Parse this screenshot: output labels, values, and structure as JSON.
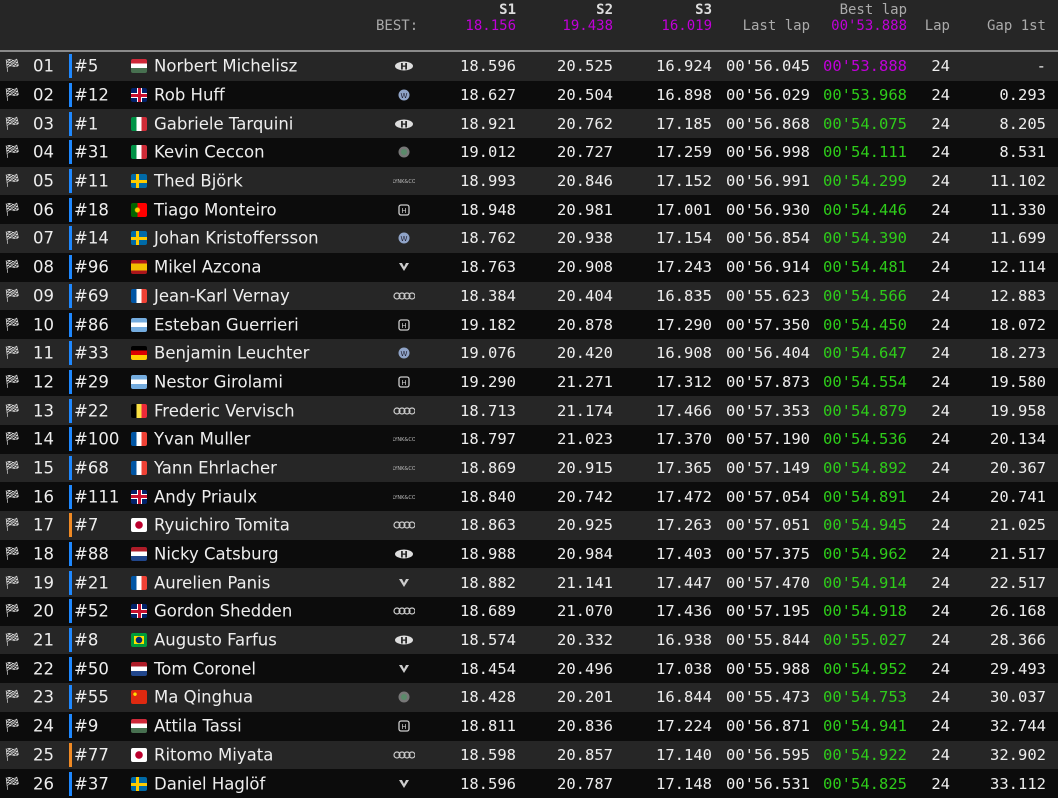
{
  "header": {
    "best_label": "BEST:",
    "s1": "S1",
    "s2": "S2",
    "s3": "S3",
    "best_s1": "18.156",
    "best_s2": "19.438",
    "best_s3": "16.019",
    "last_lap": "Last lap",
    "best_lap": "Best lap",
    "best_lap_value": "00'53.888",
    "lap": "Lap",
    "gap": "Gap 1st"
  },
  "colors": {
    "purple": "#c000d8",
    "green": "#2ecc1a",
    "bar_blue": "#1e88ff",
    "bar_orange": "#f08a24"
  },
  "rows": [
    {
      "pos": "01",
      "num": "#5",
      "country": "HU",
      "name": "Norbert Michelisz",
      "brand": "hyundai",
      "s1": "18.596",
      "s2": "20.525",
      "s3": "16.924",
      "last": "00'56.045",
      "best": "00'53.888",
      "best_overall": true,
      "lap": "24",
      "gap": "-",
      "bar": "blue"
    },
    {
      "pos": "02",
      "num": "#12",
      "country": "GB",
      "name": "Rob Huff",
      "brand": "vw",
      "s1": "18.627",
      "s2": "20.504",
      "s3": "16.898",
      "last": "00'56.029",
      "best": "00'53.968",
      "lap": "24",
      "gap": "0.293",
      "bar": "blue"
    },
    {
      "pos": "03",
      "num": "#1",
      "country": "IT",
      "name": "Gabriele Tarquini",
      "brand": "hyundai",
      "s1": "18.921",
      "s2": "20.762",
      "s3": "17.185",
      "last": "00'56.868",
      "best": "00'54.075",
      "lap": "24",
      "gap": "8.205",
      "bar": "blue"
    },
    {
      "pos": "04",
      "num": "#31",
      "country": "IT",
      "name": "Kevin Ceccon",
      "brand": "alfa",
      "s1": "19.012",
      "s2": "20.727",
      "s3": "17.259",
      "last": "00'56.998",
      "best": "00'54.111",
      "lap": "24",
      "gap": "8.531",
      "bar": "blue"
    },
    {
      "pos": "05",
      "num": "#11",
      "country": "SE",
      "name": "Thed Björk",
      "brand": "lynkco",
      "s1": "18.993",
      "s2": "20.846",
      "s3": "17.152",
      "last": "00'56.991",
      "best": "00'54.299",
      "lap": "24",
      "gap": "11.102",
      "bar": "blue"
    },
    {
      "pos": "06",
      "num": "#18",
      "country": "PT",
      "name": "Tiago Monteiro",
      "brand": "honda",
      "s1": "18.948",
      "s2": "20.981",
      "s3": "17.001",
      "last": "00'56.930",
      "best": "00'54.446",
      "lap": "24",
      "gap": "11.330",
      "bar": "blue"
    },
    {
      "pos": "07",
      "num": "#14",
      "country": "SE",
      "name": "Johan Kristoffersson",
      "brand": "vw",
      "s1": "18.762",
      "s2": "20.938",
      "s3": "17.154",
      "last": "00'56.854",
      "best": "00'54.390",
      "lap": "24",
      "gap": "11.699",
      "bar": "blue"
    },
    {
      "pos": "08",
      "num": "#96",
      "country": "ES",
      "name": "Mikel Azcona",
      "brand": "cupra",
      "s1": "18.763",
      "s2": "20.908",
      "s3": "17.243",
      "last": "00'56.914",
      "best": "00'54.481",
      "lap": "24",
      "gap": "12.114",
      "bar": "blue"
    },
    {
      "pos": "09",
      "num": "#69",
      "country": "FR",
      "name": "Jean-Karl Vernay",
      "brand": "audi",
      "s1": "18.384",
      "s2": "20.404",
      "s3": "16.835",
      "last": "00'55.623",
      "best": "00'54.566",
      "lap": "24",
      "gap": "12.883",
      "bar": "blue"
    },
    {
      "pos": "10",
      "num": "#86",
      "country": "AR",
      "name": "Esteban Guerrieri",
      "brand": "honda",
      "s1": "19.182",
      "s2": "20.878",
      "s3": "17.290",
      "last": "00'57.350",
      "best": "00'54.450",
      "lap": "24",
      "gap": "18.072",
      "bar": "blue"
    },
    {
      "pos": "11",
      "num": "#33",
      "country": "DE",
      "name": "Benjamin Leuchter",
      "brand": "vw",
      "s1": "19.076",
      "s2": "20.420",
      "s3": "16.908",
      "last": "00'56.404",
      "best": "00'54.647",
      "lap": "24",
      "gap": "18.273",
      "bar": "blue"
    },
    {
      "pos": "12",
      "num": "#29",
      "country": "AR",
      "name": "Nestor Girolami",
      "brand": "honda",
      "s1": "19.290",
      "s2": "21.271",
      "s3": "17.312",
      "last": "00'57.873",
      "best": "00'54.554",
      "lap": "24",
      "gap": "19.580",
      "bar": "blue"
    },
    {
      "pos": "13",
      "num": "#22",
      "country": "BE",
      "name": "Frederic Vervisch",
      "brand": "audi",
      "s1": "18.713",
      "s2": "21.174",
      "s3": "17.466",
      "last": "00'57.353",
      "best": "00'54.879",
      "lap": "24",
      "gap": "19.958",
      "bar": "blue"
    },
    {
      "pos": "14",
      "num": "#100",
      "country": "FR",
      "name": "Yvan Muller",
      "brand": "lynkco",
      "s1": "18.797",
      "s2": "21.023",
      "s3": "17.370",
      "last": "00'57.190",
      "best": "00'54.536",
      "lap": "24",
      "gap": "20.134",
      "bar": "blue"
    },
    {
      "pos": "15",
      "num": "#68",
      "country": "FR",
      "name": "Yann Ehrlacher",
      "brand": "lynkco",
      "s1": "18.869",
      "s2": "20.915",
      "s3": "17.365",
      "last": "00'57.149",
      "best": "00'54.892",
      "lap": "24",
      "gap": "20.367",
      "bar": "blue"
    },
    {
      "pos": "16",
      "num": "#111",
      "country": "GB",
      "name": "Andy Priaulx",
      "brand": "lynkco",
      "s1": "18.840",
      "s2": "20.742",
      "s3": "17.472",
      "last": "00'57.054",
      "best": "00'54.891",
      "lap": "24",
      "gap": "20.741",
      "bar": "blue"
    },
    {
      "pos": "17",
      "num": "#7",
      "country": "JP",
      "name": "Ryuichiro Tomita",
      "brand": "audi",
      "s1": "18.863",
      "s2": "20.925",
      "s3": "17.263",
      "last": "00'57.051",
      "best": "00'54.945",
      "lap": "24",
      "gap": "21.025",
      "bar": "orange"
    },
    {
      "pos": "18",
      "num": "#88",
      "country": "NL",
      "name": "Nicky Catsburg",
      "brand": "hyundai",
      "s1": "18.988",
      "s2": "20.984",
      "s3": "17.403",
      "last": "00'57.375",
      "best": "00'54.962",
      "lap": "24",
      "gap": "21.517",
      "bar": "blue"
    },
    {
      "pos": "19",
      "num": "#21",
      "country": "FR",
      "name": "Aurelien Panis",
      "brand": "cupra",
      "s1": "18.882",
      "s2": "21.141",
      "s3": "17.447",
      "last": "00'57.470",
      "best": "00'54.914",
      "lap": "24",
      "gap": "22.517",
      "bar": "blue"
    },
    {
      "pos": "20",
      "num": "#52",
      "country": "GB",
      "name": "Gordon Shedden",
      "brand": "audi",
      "s1": "18.689",
      "s2": "21.070",
      "s3": "17.436",
      "last": "00'57.195",
      "best": "00'54.918",
      "lap": "24",
      "gap": "26.168",
      "bar": "blue"
    },
    {
      "pos": "21",
      "num": "#8",
      "country": "BR",
      "name": "Augusto Farfus",
      "brand": "hyundai",
      "s1": "18.574",
      "s2": "20.332",
      "s3": "16.938",
      "last": "00'55.844",
      "best": "00'55.027",
      "lap": "24",
      "gap": "28.366",
      "bar": "blue"
    },
    {
      "pos": "22",
      "num": "#50",
      "country": "NL",
      "name": "Tom Coronel",
      "brand": "cupra",
      "s1": "18.454",
      "s2": "20.496",
      "s3": "17.038",
      "last": "00'55.988",
      "best": "00'54.952",
      "lap": "24",
      "gap": "29.493",
      "bar": "blue"
    },
    {
      "pos": "23",
      "num": "#55",
      "country": "CN",
      "name": "Ma Qinghua",
      "brand": "alfa",
      "s1": "18.428",
      "s2": "20.201",
      "s3": "16.844",
      "last": "00'55.473",
      "best": "00'54.753",
      "lap": "24",
      "gap": "30.037",
      "bar": "blue"
    },
    {
      "pos": "24",
      "num": "#9",
      "country": "HU",
      "name": "Attila Tassi",
      "brand": "honda",
      "s1": "18.811",
      "s2": "20.836",
      "s3": "17.224",
      "last": "00'56.871",
      "best": "00'54.941",
      "lap": "24",
      "gap": "32.744",
      "bar": "blue"
    },
    {
      "pos": "25",
      "num": "#77",
      "country": "JP",
      "name": "Ritomo Miyata",
      "brand": "audi",
      "s1": "18.598",
      "s2": "20.857",
      "s3": "17.140",
      "last": "00'56.595",
      "best": "00'54.922",
      "lap": "24",
      "gap": "32.902",
      "bar": "orange"
    },
    {
      "pos": "26",
      "num": "#37",
      "country": "SE",
      "name": "Daniel Haglöf",
      "brand": "cupra",
      "s1": "18.596",
      "s2": "20.787",
      "s3": "17.148",
      "last": "00'56.531",
      "best": "00'54.825",
      "lap": "24",
      "gap": "33.112",
      "bar": "blue"
    }
  ]
}
